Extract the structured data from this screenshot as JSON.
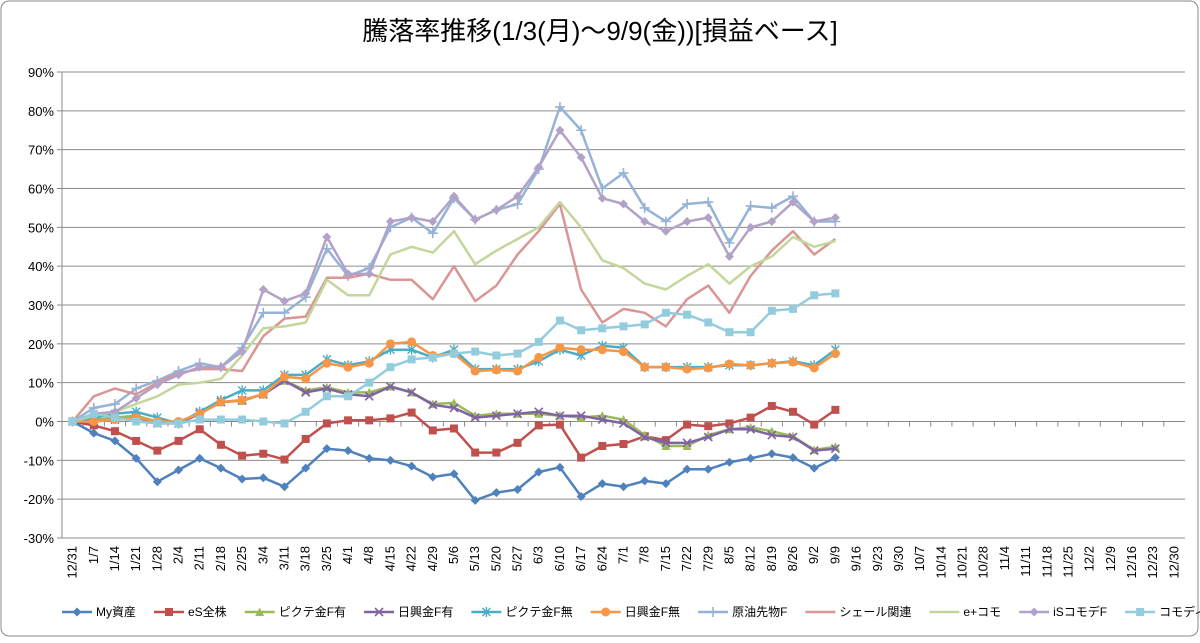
{
  "chart_data": {
    "type": "line",
    "title": "騰落率推移(1/3(月)～9/9(金))[損益ベース]",
    "categories": [
      "12/31",
      "1/7",
      "1/14",
      "1/21",
      "1/28",
      "2/4",
      "2/11",
      "2/18",
      "2/25",
      "3/4",
      "3/11",
      "3/18",
      "3/25",
      "4/1",
      "4/8",
      "4/15",
      "4/22",
      "4/29",
      "5/6",
      "5/13",
      "5/20",
      "5/27",
      "6/3",
      "6/10",
      "6/17",
      "6/24",
      "7/1",
      "7/8",
      "7/15",
      "7/22",
      "7/29",
      "8/5",
      "8/12",
      "8/19",
      "8/26",
      "9/2",
      "9/9",
      "9/16",
      "9/23",
      "9/30",
      "10/7",
      "10/14",
      "10/21",
      "10/28",
      "11/4",
      "11/11",
      "11/18",
      "11/25",
      "12/2",
      "12/9",
      "12/16",
      "12/23",
      "12/30"
    ],
    "ylim": [
      -30,
      90
    ],
    "yticks": [
      {
        "value": -30,
        "label": "-30%"
      },
      {
        "value": -20,
        "label": "-20%"
      },
      {
        "value": -10,
        "label": "-10%"
      },
      {
        "value": 0,
        "label": "0%"
      },
      {
        "value": 10,
        "label": "10%"
      },
      {
        "value": 20,
        "label": "20%"
      },
      {
        "value": 30,
        "label": "30%"
      },
      {
        "value": 40,
        "label": "40%"
      },
      {
        "value": 50,
        "label": "50%"
      },
      {
        "value": 60,
        "label": "60%"
      },
      {
        "value": 70,
        "label": "70%"
      },
      {
        "value": 80,
        "label": "80%"
      },
      {
        "value": 90,
        "label": "90%"
      }
    ],
    "grid": true,
    "legend": "bottom",
    "series": [
      {
        "name": "My資産",
        "color": "#4f81bd",
        "marker": "diamond",
        "values": [
          0,
          -3,
          -5,
          -9.5,
          -15.5,
          -12.5,
          -9.5,
          -12,
          -14.8,
          -14.5,
          -16.8,
          -12,
          -7,
          -7.5,
          -9.5,
          -10,
          -11.5,
          -14.3,
          -13.5,
          -20.3,
          -18.3,
          -17.5,
          -13,
          -11.8,
          -19.3,
          -16,
          -16.8,
          -15.3,
          -16,
          -12.3,
          -12.3,
          -10.5,
          -9.5,
          -8.3,
          -9.3,
          -12,
          -9.3,
          null,
          null,
          null,
          null,
          null,
          null,
          null,
          null,
          null,
          null,
          null,
          null,
          null,
          null,
          null,
          null
        ]
      },
      {
        "name": "eS全株",
        "color": "#c0504d",
        "marker": "square",
        "values": [
          0,
          -1,
          -2.5,
          -5,
          -7.5,
          -5,
          -2,
          -6,
          -8.8,
          -8.3,
          -9.8,
          -4.5,
          -0.5,
          0.3,
          0.3,
          0.8,
          2.3,
          -2.3,
          -1.8,
          -8,
          -8,
          -5.5,
          -1,
          -0.8,
          -9.3,
          -6.3,
          -5.8,
          -3.8,
          -4.8,
          -0.8,
          -1.2,
          -0.5,
          1,
          4,
          2.5,
          -0.8,
          3,
          null,
          null,
          null,
          null,
          null,
          null,
          null,
          null,
          null,
          null,
          null,
          null,
          null,
          null,
          null,
          null
        ]
      },
      {
        "name": "ピクテ金F有",
        "color": "#9bbb59",
        "marker": "triangle",
        "values": [
          0,
          0.5,
          1,
          1.5,
          0,
          -0.5,
          2,
          5,
          5.3,
          7,
          10.5,
          8,
          8.8,
          7.5,
          7.5,
          9,
          7.5,
          4.5,
          4.8,
          1.5,
          2,
          2,
          2,
          1.5,
          1,
          1.5,
          0.5,
          -3.5,
          -6.3,
          -6.3,
          -3.5,
          -2,
          -1.5,
          -2.5,
          -3.8,
          -7.3,
          -6.5,
          null,
          null,
          null,
          null,
          null,
          null,
          null,
          null,
          null,
          null,
          null,
          null,
          null,
          null,
          null,
          null
        ]
      },
      {
        "name": "日興金F有",
        "color": "#8064a2",
        "marker": "x",
        "values": [
          0,
          0,
          0.5,
          1,
          -0.5,
          -0.5,
          2,
          5,
          5.5,
          7,
          10.5,
          7.5,
          8.5,
          7,
          6.5,
          9,
          7.5,
          4.3,
          3.5,
          1,
          1.5,
          2,
          2.5,
          1.5,
          1.5,
          0.5,
          -0.5,
          -4,
          -5.5,
          -5.5,
          -4,
          -2,
          -2,
          -3.5,
          -4,
          -7.5,
          -7,
          null,
          null,
          null,
          null,
          null,
          null,
          null,
          null,
          null,
          null,
          null,
          null,
          null,
          null,
          null,
          null
        ]
      },
      {
        "name": "ピクテ金F無",
        "color": "#4bacc6",
        "marker": "star",
        "values": [
          0,
          1,
          2,
          2.5,
          1,
          -0.5,
          2.5,
          5.5,
          8,
          8,
          12,
          12,
          16,
          14.5,
          15.5,
          18.5,
          18.5,
          16.5,
          18.5,
          13.5,
          13.5,
          13.5,
          15.5,
          18.5,
          17,
          19.5,
          19,
          14,
          14,
          14,
          14,
          14.5,
          14.5,
          15,
          15.5,
          14.5,
          18.5,
          null,
          null,
          null,
          null,
          null,
          null,
          null,
          null,
          null,
          null,
          null,
          null,
          null,
          null,
          null,
          null
        ]
      },
      {
        "name": "日興金F無",
        "color": "#f79646",
        "marker": "circle",
        "values": [
          0,
          0,
          0.5,
          1,
          0,
          0,
          2,
          5,
          5.5,
          7,
          11.5,
          11,
          15,
          14,
          15,
          20,
          20.5,
          17,
          17.5,
          13,
          13.3,
          13,
          16.5,
          19,
          18.5,
          18.5,
          18,
          14,
          14,
          13.5,
          13.8,
          14.8,
          14.5,
          15,
          15.3,
          13.8,
          17.5,
          null,
          null,
          null,
          null,
          null,
          null,
          null,
          null,
          null,
          null,
          null,
          null,
          null,
          null,
          null,
          null
        ]
      },
      {
        "name": "原油先物F",
        "color": "#95b3d7",
        "marker": "plus",
        "values": [
          0,
          3.5,
          4.5,
          8.5,
          10.5,
          13,
          15,
          14,
          19,
          28,
          28,
          32,
          44.5,
          37.5,
          39.5,
          50,
          52.5,
          48.5,
          57.5,
          52,
          54.5,
          56,
          65,
          81,
          75,
          60,
          64,
          55,
          51.5,
          56,
          56.5,
          46,
          55.5,
          55,
          58,
          51.5,
          51.5,
          null,
          null,
          null,
          null,
          null,
          null,
          null,
          null,
          null,
          null,
          null,
          null,
          null,
          null,
          null,
          null
        ]
      },
      {
        "name": "シェール関連",
        "color": "#d99694",
        "marker": "none",
        "values": [
          0,
          6.5,
          8.5,
          7,
          10,
          12.5,
          13.5,
          13.5,
          13,
          22,
          26.5,
          27,
          37,
          37,
          38,
          36.5,
          36.5,
          31.5,
          40,
          31,
          35,
          43,
          49,
          56,
          34,
          25.5,
          29,
          28,
          24.5,
          31.5,
          35,
          28,
          37.5,
          44,
          49,
          43,
          47,
          null,
          null,
          null,
          null,
          null,
          null,
          null,
          null,
          null,
          null,
          null,
          null,
          null,
          null,
          null,
          null
        ]
      },
      {
        "name": "e+コモ",
        "color": "#c3d69b",
        "marker": "none",
        "values": [
          0,
          1.5,
          2.5,
          4.5,
          6.5,
          9.5,
          10,
          11,
          17,
          24,
          24.5,
          25.5,
          36.5,
          32.5,
          32.5,
          43,
          45,
          43.5,
          49,
          40.5,
          44,
          47,
          50,
          56.5,
          50,
          41.5,
          39.5,
          35.5,
          34,
          37.5,
          40.5,
          35.5,
          40,
          42.5,
          47.5,
          45,
          46.5,
          null,
          null,
          null,
          null,
          null,
          null,
          null,
          null,
          null,
          null,
          null,
          null,
          null,
          null,
          null,
          null
        ]
      },
      {
        "name": "iSコモデF",
        "color": "#b3a2c7",
        "marker": "diamond",
        "values": [
          0,
          2,
          2.5,
          6,
          9.5,
          12,
          14,
          14,
          18,
          34,
          31,
          33,
          47.5,
          38,
          38,
          51.5,
          52.5,
          51.5,
          58,
          52,
          54.5,
          58,
          65.5,
          75,
          68,
          57.5,
          56,
          51.5,
          49,
          51.5,
          52.5,
          42.5,
          50,
          51.5,
          56.5,
          51.5,
          52.5,
          null,
          null,
          null,
          null,
          null,
          null,
          null,
          null,
          null,
          null,
          null,
          null,
          null,
          null,
          null,
          null
        ]
      },
      {
        "name": "コモディα戦",
        "color": "#93cddd",
        "marker": "square",
        "values": [
          0,
          2,
          1,
          0,
          -0.5,
          -0.5,
          0.5,
          0.5,
          0.5,
          0,
          -0.5,
          2.5,
          6.5,
          6.5,
          10,
          14,
          16,
          16.5,
          17.5,
          18,
          17,
          17.5,
          20.5,
          26,
          23.5,
          24,
          24.5,
          25,
          28,
          27.5,
          25.5,
          23,
          23,
          28.5,
          29,
          32.5,
          33,
          null,
          null,
          null,
          null,
          null,
          null,
          null,
          null,
          null,
          null,
          null,
          null,
          null,
          null,
          null,
          null
        ]
      }
    ]
  }
}
